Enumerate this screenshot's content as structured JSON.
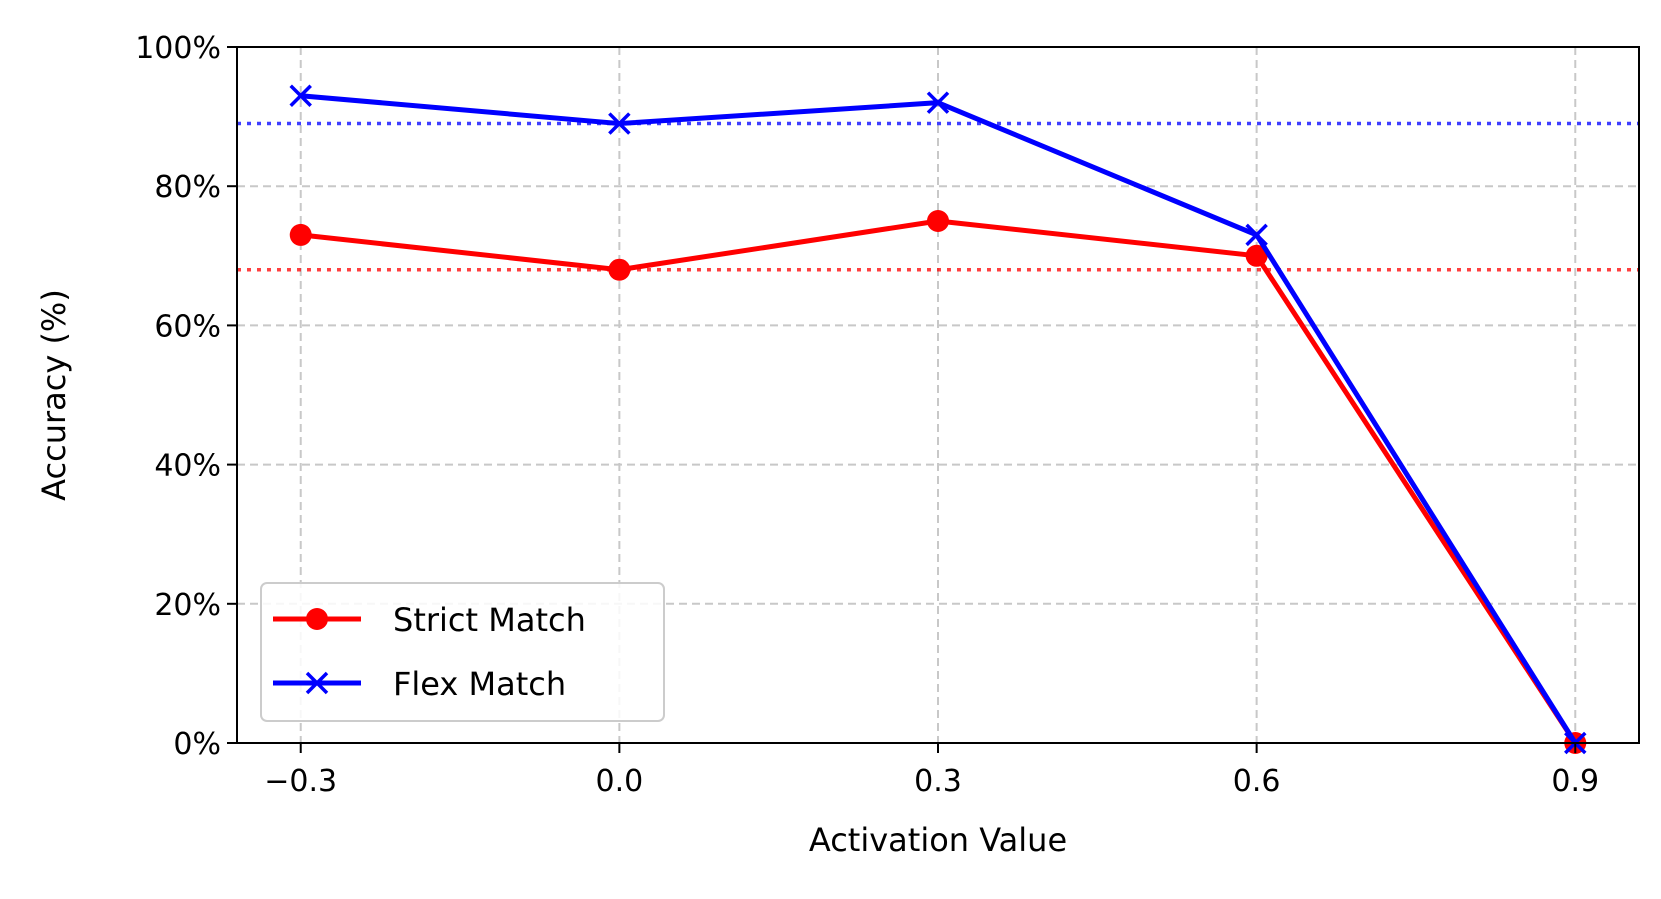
{
  "chart_data": {
    "type": "line",
    "title": "",
    "xlabel": "Activation Value",
    "ylabel": "Accuracy (%)",
    "x": [
      -0.3,
      0.0,
      0.3,
      0.6,
      0.9
    ],
    "x_tick_labels": [
      "−0.3",
      "0.0",
      "0.3",
      "0.6",
      "0.9"
    ],
    "xlim": [
      -0.36,
      0.96
    ],
    "ylim": [
      0,
      100
    ],
    "y_ticks": [
      0,
      20,
      40,
      60,
      80,
      100
    ],
    "y_tick_labels": [
      "0%",
      "20%",
      "40%",
      "60%",
      "80%",
      "100%"
    ],
    "grid": true,
    "legend_position": "lower-left",
    "series": [
      {
        "name": "Strict Match",
        "values": [
          73,
          68,
          75,
          70,
          0
        ],
        "color": "#ff0000",
        "marker": "circle"
      },
      {
        "name": "Flex Match",
        "values": [
          93,
          89,
          92,
          73,
          0
        ],
        "color": "#0000ff",
        "marker": "x"
      }
    ],
    "reference_lines": [
      {
        "value": 68,
        "color": "#ff0000",
        "style": "dotted"
      },
      {
        "value": 89,
        "color": "#0000ff",
        "style": "dotted"
      }
    ]
  }
}
